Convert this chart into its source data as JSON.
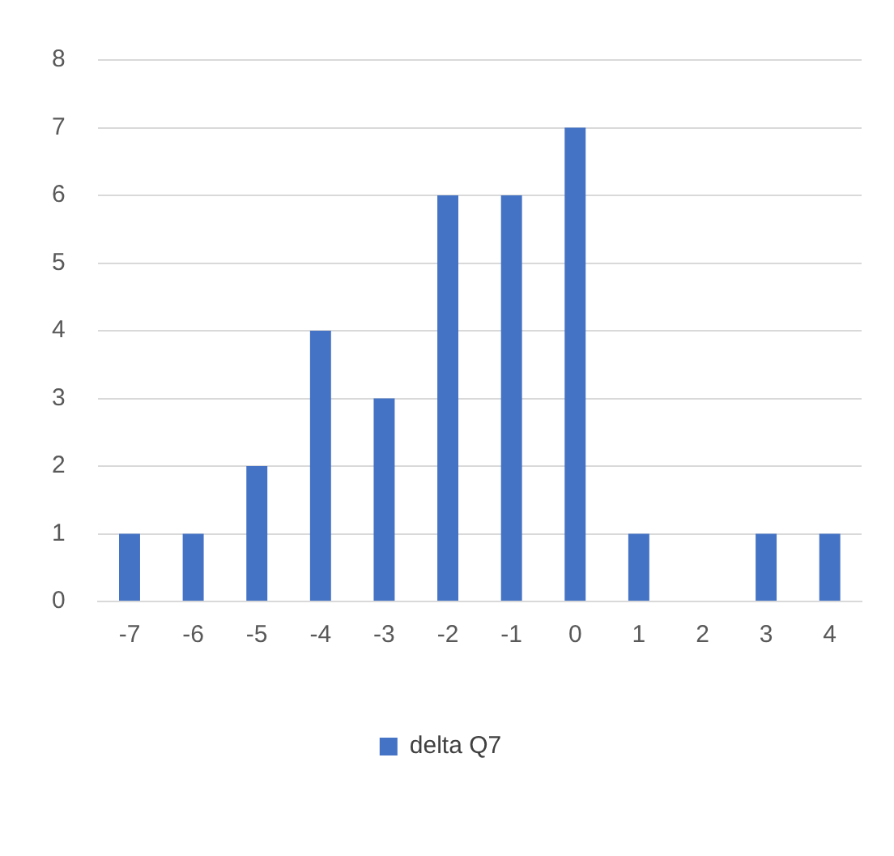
{
  "chart_data": {
    "type": "bar",
    "categories": [
      "-7",
      "-6",
      "-5",
      "-4",
      "-3",
      "-2",
      "-1",
      "0",
      "1",
      "2",
      "3",
      "4"
    ],
    "series": [
      {
        "name": "delta Q7",
        "color": "#4472c4",
        "values": [
          1,
          1,
          2,
          4,
          3,
          6,
          6,
          7,
          1,
          0,
          1,
          1
        ]
      }
    ],
    "ylim": [
      0,
      8
    ],
    "yticks": [
      0,
      1,
      2,
      3,
      4,
      5,
      6,
      7,
      8
    ],
    "grid": "y",
    "legend": "bottom"
  }
}
